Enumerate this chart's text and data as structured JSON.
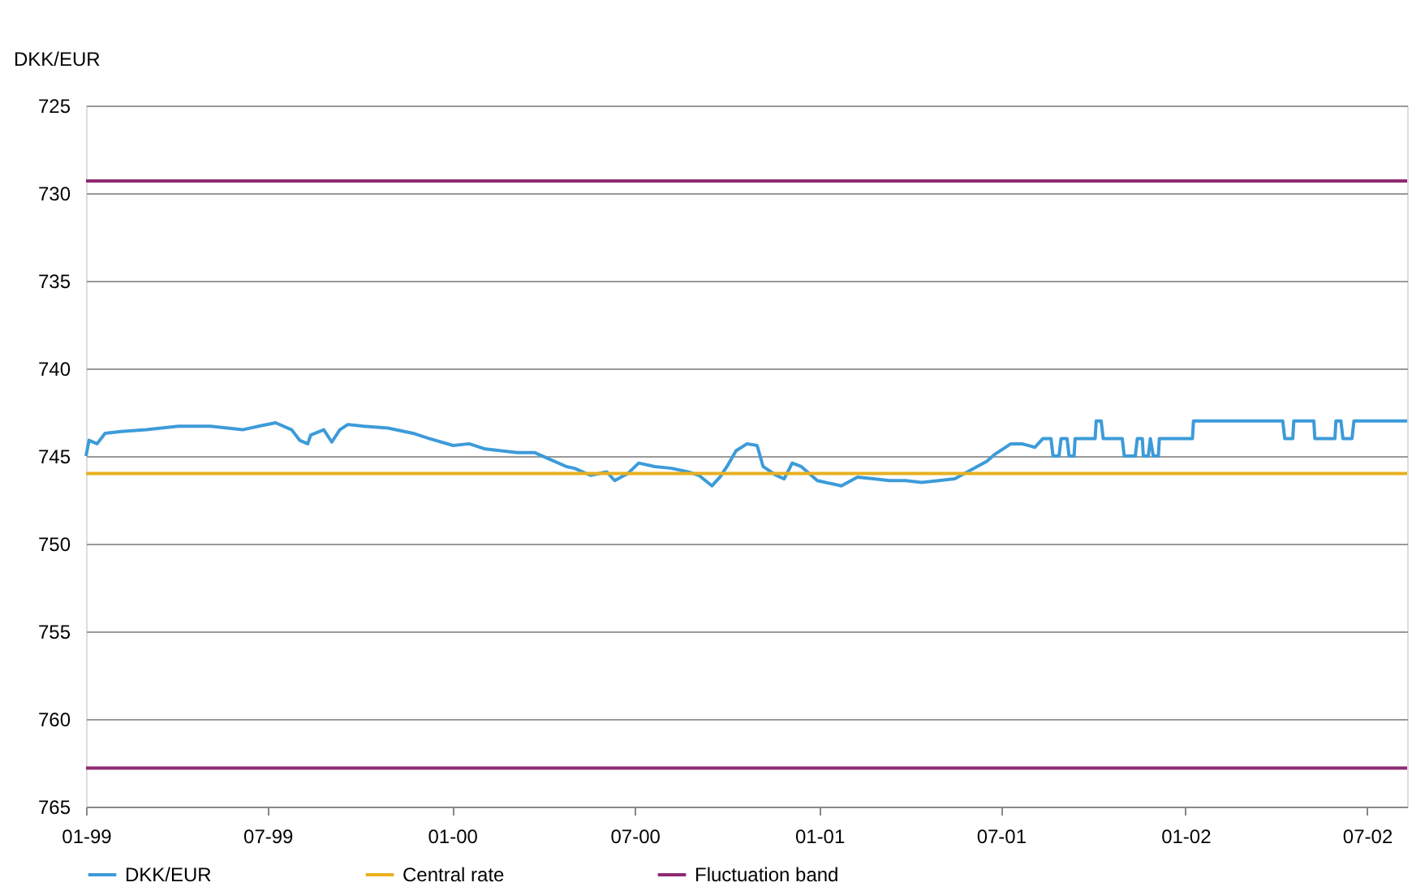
{
  "chart_data": {
    "type": "line",
    "ylabel": "DKK/EUR",
    "x": [
      "1999-01-01",
      "1999-01-04",
      "1999-01-12",
      "1999-01-20",
      "1999-02-05",
      "1999-03-02",
      "1999-04-03",
      "1999-05-05",
      "1999-06-06",
      "1999-06-22",
      "1999-07-09",
      "1999-07-25",
      "1999-08-02",
      "1999-08-10",
      "1999-08-13",
      "1999-08-26",
      "1999-09-03",
      "1999-09-11",
      "1999-09-19",
      "1999-10-05",
      "1999-10-29",
      "1999-11-23",
      "1999-12-09",
      "2000-01-02",
      "2000-01-18",
      "2000-02-03",
      "2000-02-19",
      "2000-03-06",
      "2000-03-23",
      "2000-04-08",
      "2000-04-24",
      "2000-05-02",
      "2000-05-18",
      "2000-06-03",
      "2000-06-11",
      "2000-06-24",
      "2000-07-05",
      "2000-07-21",
      "2000-08-07",
      "2000-08-23",
      "2000-09-03",
      "2000-09-16",
      "2000-09-24",
      "2000-10-02",
      "2000-10-10",
      "2000-10-21",
      "2000-10-31",
      "2000-11-06",
      "2000-11-19",
      "2000-11-27",
      "2000-12-05",
      "2000-12-14",
      "2000-12-30",
      "2001-01-15",
      "2001-01-23",
      "2001-02-08",
      "2001-02-24",
      "2001-03-12",
      "2001-03-28",
      "2001-04-13",
      "2001-04-30",
      "2001-05-16",
      "2001-06-01",
      "2001-06-17",
      "2001-06-25",
      "2001-07-03",
      "2001-07-11",
      "2001-07-22",
      "2001-08-04",
      "2001-08-12",
      "2001-08-20",
      "2001-08-22",
      "2001-08-28",
      "2001-08-30",
      "2001-09-05",
      "2001-09-07",
      "2001-09-12",
      "2001-09-13",
      "2001-10-03",
      "2001-10-04",
      "2001-10-09",
      "2001-10-11",
      "2001-10-30",
      "2001-11-01",
      "2001-11-12",
      "2001-11-14",
      "2001-11-19",
      "2001-11-20",
      "2001-11-25",
      "2001-11-27",
      "2001-11-30",
      "2001-12-05",
      "2001-12-06",
      "2002-01-08",
      "2002-01-09",
      "2002-04-08",
      "2002-04-10",
      "2002-04-18",
      "2002-04-19",
      "2002-05-09",
      "2002-05-10",
      "2002-05-30",
      "2002-05-31",
      "2002-06-05",
      "2002-06-07",
      "2002-06-16",
      "2002-06-18",
      "2002-08-10"
    ],
    "series": [
      {
        "name": "DKK/EUR",
        "color": "#3d9bd9",
        "values": [
          745.0,
          744.1,
          744.3,
          743.7,
          743.6,
          743.5,
          743.3,
          743.3,
          743.5,
          743.3,
          743.1,
          743.5,
          744.1,
          744.3,
          743.8,
          743.5,
          744.2,
          743.5,
          743.2,
          743.3,
          743.4,
          743.7,
          744.0,
          744.4,
          744.3,
          744.6,
          744.7,
          744.8,
          744.8,
          745.2,
          745.6,
          745.7,
          746.1,
          745.9,
          746.4,
          746.0,
          745.4,
          745.6,
          745.7,
          745.9,
          746.1,
          746.7,
          746.2,
          745.5,
          744.7,
          744.3,
          744.4,
          745.6,
          746.1,
          746.3,
          745.4,
          745.6,
          746.4,
          746.6,
          746.7,
          746.2,
          746.3,
          746.4,
          746.4,
          746.5,
          746.4,
          746.3,
          745.8,
          745.3,
          744.9,
          744.6,
          744.3,
          744.3,
          744.5,
          744,
          744,
          745,
          745,
          744,
          744,
          745,
          745,
          744,
          744,
          743,
          743,
          744,
          744,
          745,
          745,
          744,
          744,
          745,
          745,
          744,
          745,
          745,
          744,
          744,
          743,
          743,
          744,
          744,
          743,
          743,
          744,
          744,
          743,
          743,
          744,
          744,
          743,
          743
        ]
      }
    ],
    "ref_lines": [
      {
        "axis": "y",
        "value": 746.0,
        "label": "Central rate",
        "color": "#e8b020"
      },
      {
        "axis": "y",
        "value": 729.3,
        "label": "Fluctuation band",
        "color": "#8e2a72"
      },
      {
        "axis": "y",
        "value": 762.8,
        "color": "#8e2a72"
      }
    ],
    "xlim": [
      "1999-01-01",
      "2002-08-10"
    ],
    "xticks": [
      {
        "value": "1999-01-01",
        "label": "01-99"
      },
      {
        "value": "1999-07-01",
        "label": "07-99"
      },
      {
        "value": "2000-01-01",
        "label": "01-00"
      },
      {
        "value": "2000-07-01",
        "label": "07-00"
      },
      {
        "value": "2001-01-01",
        "label": "01-01"
      },
      {
        "value": "2001-07-01",
        "label": "07-01"
      },
      {
        "value": "2002-01-01",
        "label": "01-02"
      },
      {
        "value": "2002-07-01",
        "label": "07-02"
      }
    ],
    "ylim": [
      765,
      725
    ],
    "yticks": [
      725,
      730,
      735,
      740,
      745,
      750,
      755,
      760,
      765
    ],
    "grid": "y",
    "legend": "bottom",
    "marker": "none",
    "line_style": "solid"
  }
}
